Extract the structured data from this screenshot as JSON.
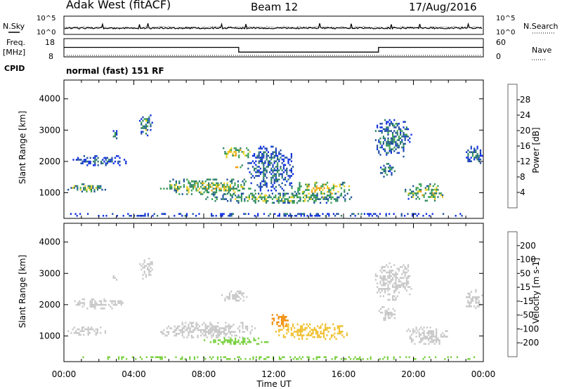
{
  "header": {
    "station": "Adak West (fitACF)",
    "beam": "Beam 12",
    "date": "17/Aug/2016"
  },
  "top_panels": {
    "nsky_label": "N.Sky",
    "nsky_ticks": [
      "10^5",
      "10^0"
    ],
    "nsearch_label": "N.Search",
    "nsearch_ticks": [
      "10^5",
      "10^0"
    ],
    "freq_label": "Freq.",
    "freq_unit": "[MHz]",
    "freq_ticks": [
      "18",
      "8"
    ],
    "nave_label": "Nave",
    "nave_ticks": [
      "60",
      "0"
    ],
    "cpid_label": "CPID",
    "cpid_text": "normal (fast) 151 RF"
  },
  "chart_data": [
    {
      "type": "heatmap",
      "title": "",
      "ylabel": "Slant Range [km]",
      "xlabel": "",
      "x_ticks": [
        "00:00",
        "04:00",
        "08:00",
        "12:00",
        "16:00",
        "20:00",
        "00:00"
      ],
      "xlim_hours": [
        0,
        24
      ],
      "ylim": [
        180,
        4600
      ],
      "y_ticks": [
        1000,
        2000,
        3000,
        4000
      ],
      "colorbar": {
        "label": "Power [dB]",
        "ticks": [
          "4",
          "8",
          "12",
          "16",
          "20",
          "24",
          "28"
        ],
        "colors": [
          "#1030e0",
          "#2050a0",
          "#2f7f6a",
          "#3aa050",
          "#e8d020",
          "#f0a010",
          "#f06010",
          "#e01010"
        ]
      },
      "echo_regions": [
        {
          "t_start": 2.8,
          "t_end": 3.1,
          "r_start": 2700,
          "r_end": 3000,
          "value": 10
        },
        {
          "t_start": 4.3,
          "t_end": 5.1,
          "r_start": 2750,
          "r_end": 3500,
          "value": 12
        },
        {
          "t_start": 0.5,
          "t_end": 3.6,
          "r_start": 1800,
          "r_end": 2200,
          "value": 6
        },
        {
          "t_start": 0.2,
          "t_end": 2.5,
          "r_start": 950,
          "r_end": 1300,
          "value": 14
        },
        {
          "t_start": 5.5,
          "t_end": 11.0,
          "r_start": 900,
          "r_end": 1450,
          "value": 16
        },
        {
          "t_start": 9.0,
          "t_end": 10.8,
          "r_start": 2050,
          "r_end": 2450,
          "value": 18
        },
        {
          "t_start": 9.8,
          "t_end": 10.3,
          "r_start": 1650,
          "r_end": 1900,
          "value": 22
        },
        {
          "t_start": 10.5,
          "t_end": 13.2,
          "r_start": 1000,
          "r_end": 2500,
          "value": 8
        },
        {
          "t_start": 8.0,
          "t_end": 16.5,
          "r_start": 600,
          "r_end": 1000,
          "value": 14
        },
        {
          "t_start": 13.0,
          "t_end": 16.5,
          "r_start": 850,
          "r_end": 1350,
          "value": 18
        },
        {
          "t_start": 17.8,
          "t_end": 20.0,
          "r_start": 2100,
          "r_end": 3350,
          "value": 10
        },
        {
          "t_start": 18.0,
          "t_end": 19.0,
          "r_start": 1450,
          "r_end": 1950,
          "value": 10
        },
        {
          "t_start": 19.5,
          "t_end": 22.0,
          "r_start": 700,
          "r_end": 1300,
          "value": 16
        },
        {
          "t_start": 23.0,
          "t_end": 24.0,
          "r_start": 1800,
          "r_end": 2500,
          "value": 8
        },
        {
          "t_start": 0.0,
          "t_end": 24.0,
          "r_start": 180,
          "r_end": 350,
          "value": 6
        }
      ]
    },
    {
      "type": "heatmap",
      "title": "",
      "ylabel": "Slant Range [km]",
      "xlabel": "Time UT",
      "x_ticks": [
        "00:00",
        "04:00",
        "08:00",
        "12:00",
        "16:00",
        "20:00",
        "00:00"
      ],
      "xlim_hours": [
        0,
        24
      ],
      "ylim": [
        180,
        4600
      ],
      "y_ticks": [
        1000,
        2000,
        3000,
        4000
      ],
      "colorbar": {
        "label": "Velocity [m s-1]",
        "ticks": [
          "200",
          "100",
          "50",
          "15",
          "-15",
          "-50",
          "-100",
          "-200"
        ],
        "colors": [
          "#1a3fd0",
          "#2f7f6a",
          "#3aa050",
          "#7ad040",
          "#c8c8c8",
          "#f0c030",
          "#f09010",
          "#f05010",
          "#e01010"
        ]
      },
      "echo_regions": [
        {
          "t_start": 2.8,
          "t_end": 3.1,
          "r_start": 2700,
          "r_end": 3000,
          "value": 0
        },
        {
          "t_start": 4.3,
          "t_end": 5.1,
          "r_start": 2750,
          "r_end": 3500,
          "value": 0
        },
        {
          "t_start": 0.5,
          "t_end": 3.6,
          "r_start": 1800,
          "r_end": 2200,
          "value": 0
        },
        {
          "t_start": 0.2,
          "t_end": 2.5,
          "r_start": 950,
          "r_end": 1300,
          "value": 0
        },
        {
          "t_start": 5.5,
          "t_end": 11.0,
          "r_start": 900,
          "r_end": 1450,
          "value": 0
        },
        {
          "t_start": 9.0,
          "t_end": 10.8,
          "r_start": 2050,
          "r_end": 2450,
          "value": 0
        },
        {
          "t_start": 8.0,
          "t_end": 12.0,
          "r_start": 700,
          "r_end": 950,
          "value": 25
        },
        {
          "t_start": 12.0,
          "t_end": 16.5,
          "r_start": 850,
          "r_end": 1400,
          "value": -40
        },
        {
          "t_start": 11.8,
          "t_end": 13.0,
          "r_start": 1250,
          "r_end": 1700,
          "value": -70
        },
        {
          "t_start": 17.8,
          "t_end": 20.0,
          "r_start": 2100,
          "r_end": 3350,
          "value": 0
        },
        {
          "t_start": 18.0,
          "t_end": 19.0,
          "r_start": 1450,
          "r_end": 1950,
          "value": 0
        },
        {
          "t_start": 19.5,
          "t_end": 22.0,
          "r_start": 700,
          "r_end": 1300,
          "value": 0
        },
        {
          "t_start": 23.0,
          "t_end": 24.0,
          "r_start": 1800,
          "r_end": 2500,
          "value": 0
        },
        {
          "t_start": 0.0,
          "t_end": 24.0,
          "r_start": 180,
          "r_end": 350,
          "value": 25
        }
      ]
    }
  ],
  "freq_trace": {
    "segments": [
      {
        "t_start": 0,
        "t_end": 10,
        "mhz": 13.2
      },
      {
        "t_start": 10,
        "t_end": 18,
        "mhz": 10.6
      },
      {
        "t_start": 18,
        "t_end": 24,
        "mhz": 13.2
      }
    ],
    "nave": 5
  }
}
